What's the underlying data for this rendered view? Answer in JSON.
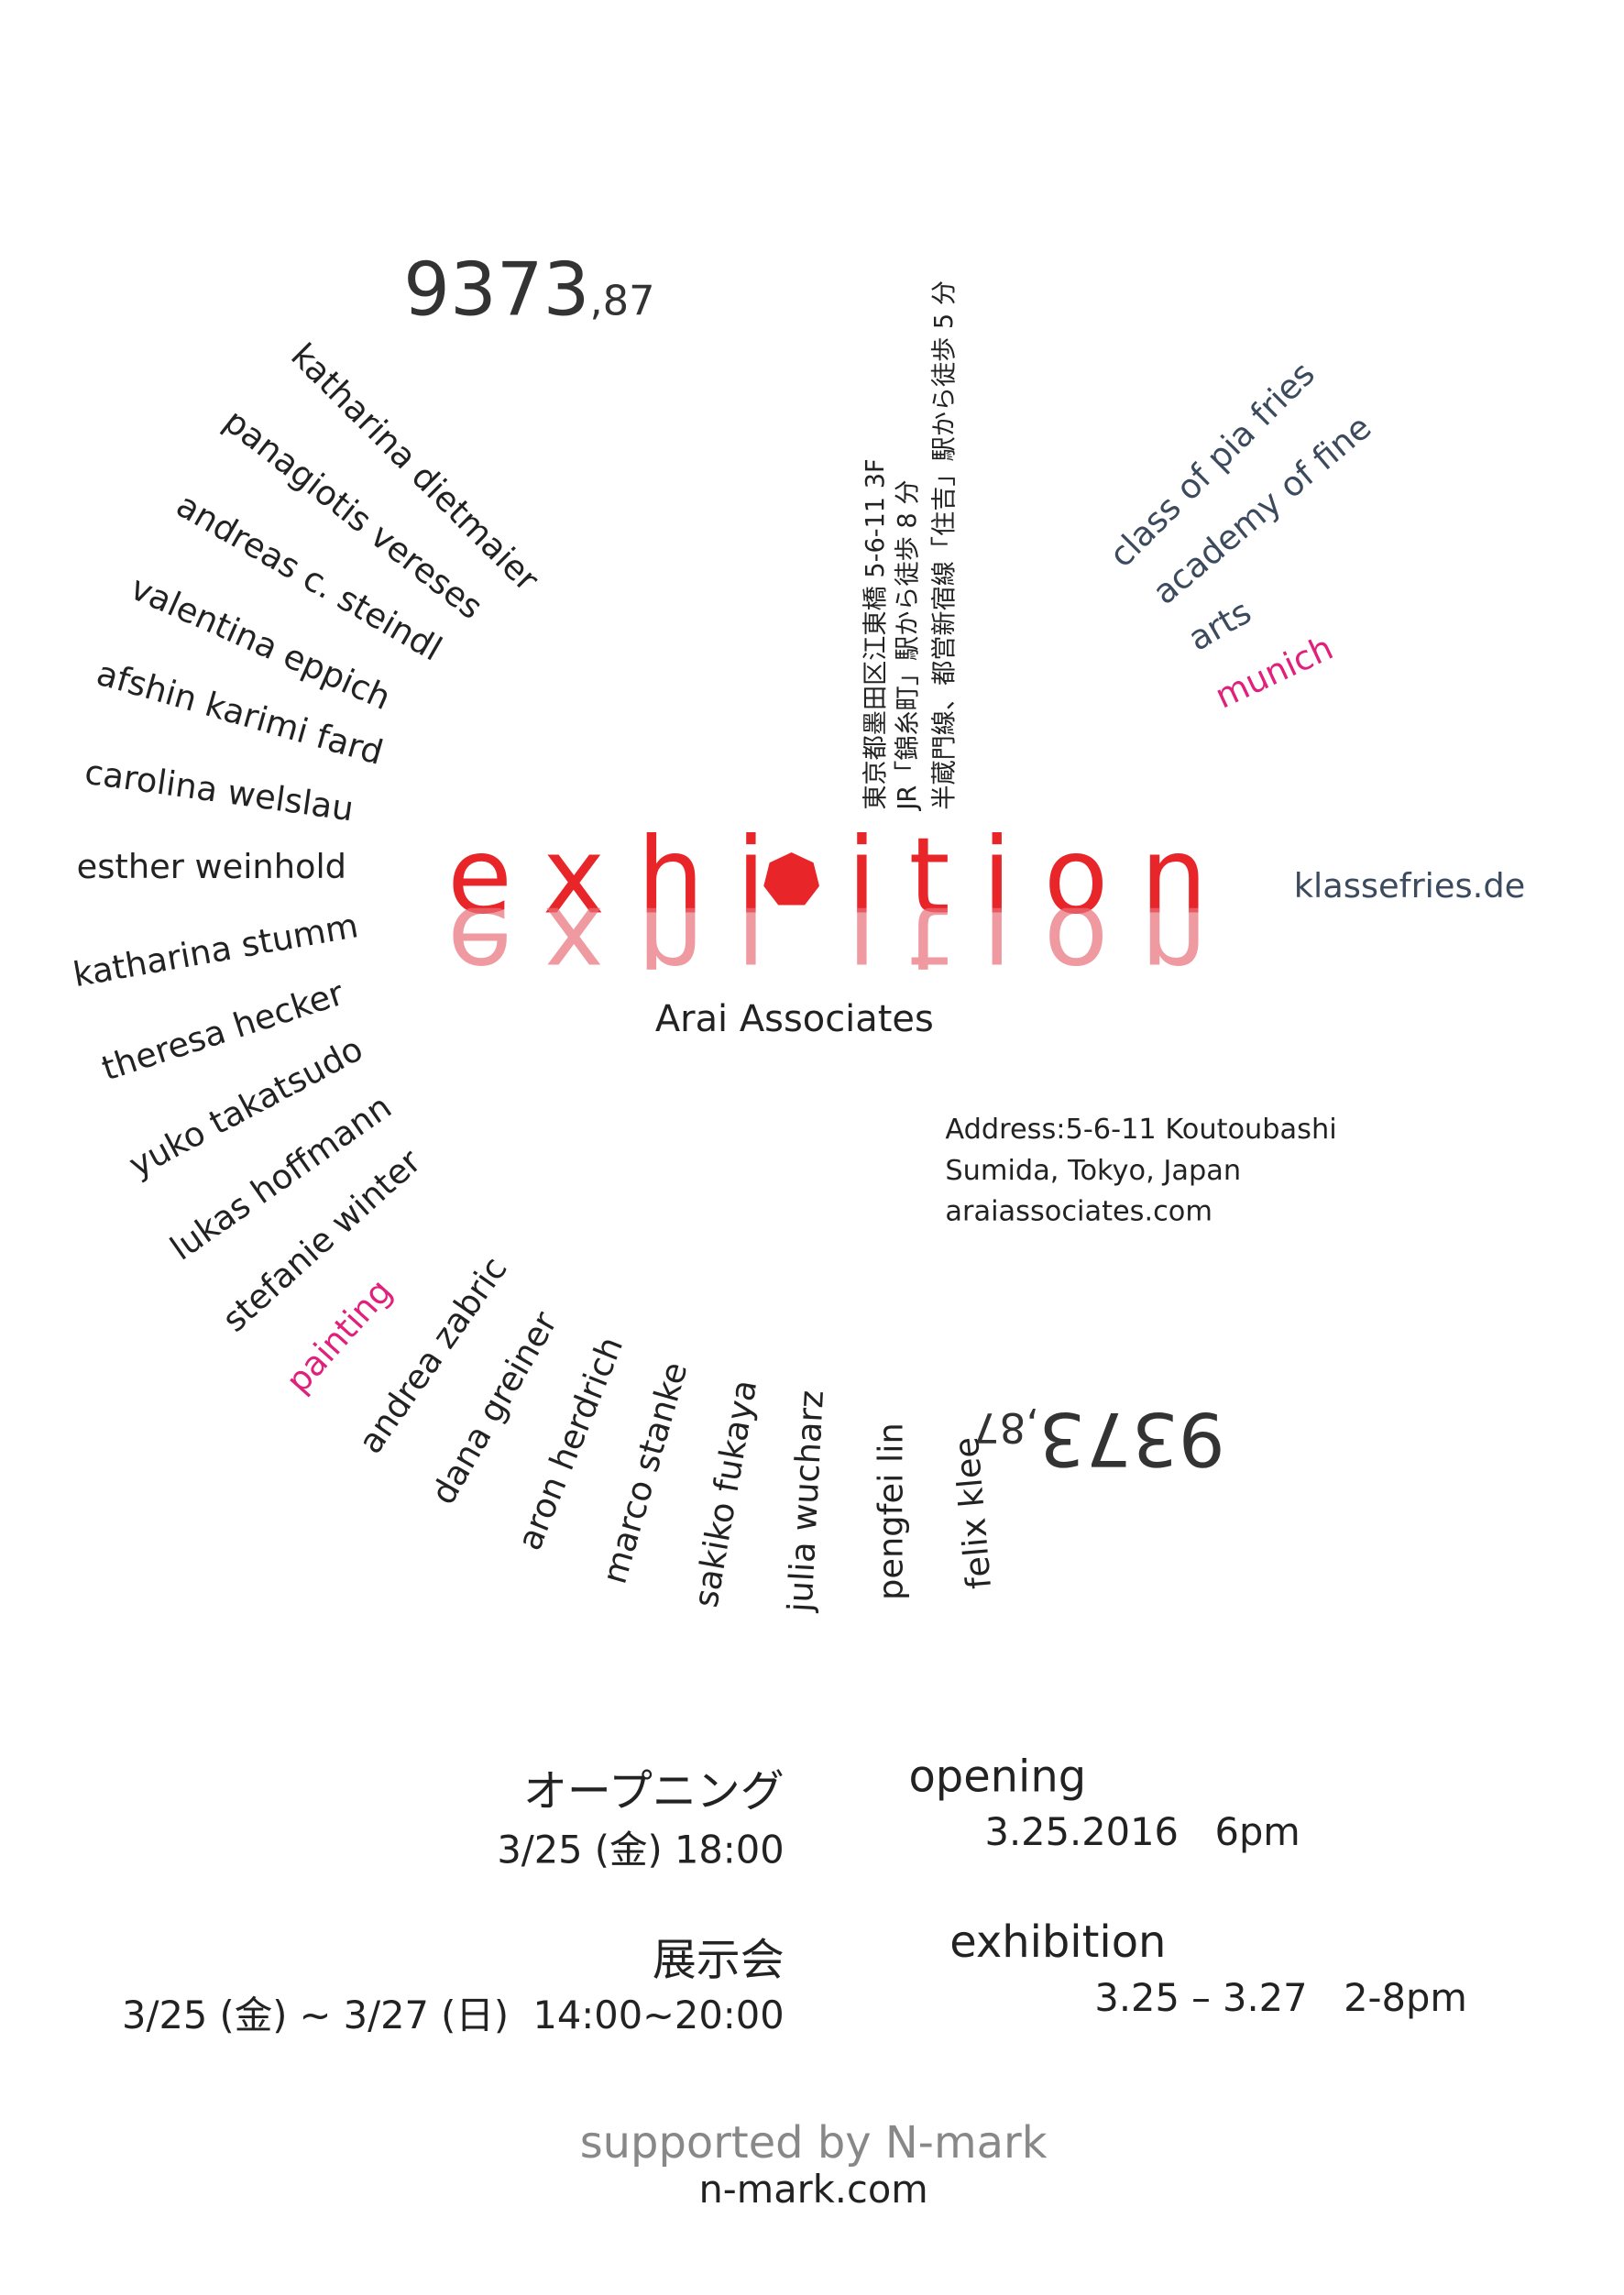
{
  "number_top": {
    "main": "9373",
    "sub": ",87"
  },
  "number_bottom": {
    "main": "9373",
    "sub": ",87"
  },
  "names": [
    "katharina dietmaier",
    "panagiotis vereses",
    "andreas c. steindl",
    "valentina eppich",
    "afshin karimi fard",
    "carolina welslau",
    "esther weinhold",
    "katharina stumm",
    "theresa hecker",
    "yuko takatsudo",
    "lukas hoffmann",
    "stefanie winter",
    "painting",
    "andrea zabric",
    "dana greiner",
    "aron herdrich",
    "marco stanke",
    "sakiko fukaya",
    "julia wucharz",
    "pengfei lin",
    "felix klee"
  ],
  "school": [
    "class of pia fries",
    "academy of fine",
    "arts",
    "munich"
  ],
  "japanese_address": [
    "東京都墨田区江東橋 5-6-11 3F",
    "JR「錦糸町」駅から徒歩 8 分",
    "半蔵門線、都営新宿線「住吉」駅から徒歩 5 分"
  ],
  "title": {
    "left": "exhi",
    "right": "ition"
  },
  "website": "klassefries.de",
  "venue": "Arai Associates",
  "address": [
    "Address:5-6-11 Koutoubashi",
    "Sumida, Tokyo, Japan",
    "araiassociates.com"
  ],
  "opening": {
    "jp_label": "オープニング",
    "jp_date": "3/25 (金) 18:00",
    "en_label": "opening",
    "en_date": "3.25.2016   6pm"
  },
  "exhibition": {
    "jp_label": "展示会",
    "jp_date": "3/25 (金) ~ 3/27 (日)  14:00~20:00",
    "en_label": "exhibition",
    "en_date": "3.25 – 3.27   2-8pm"
  },
  "footer": {
    "support": "supported by N-mark",
    "url": "n-mark.com"
  }
}
